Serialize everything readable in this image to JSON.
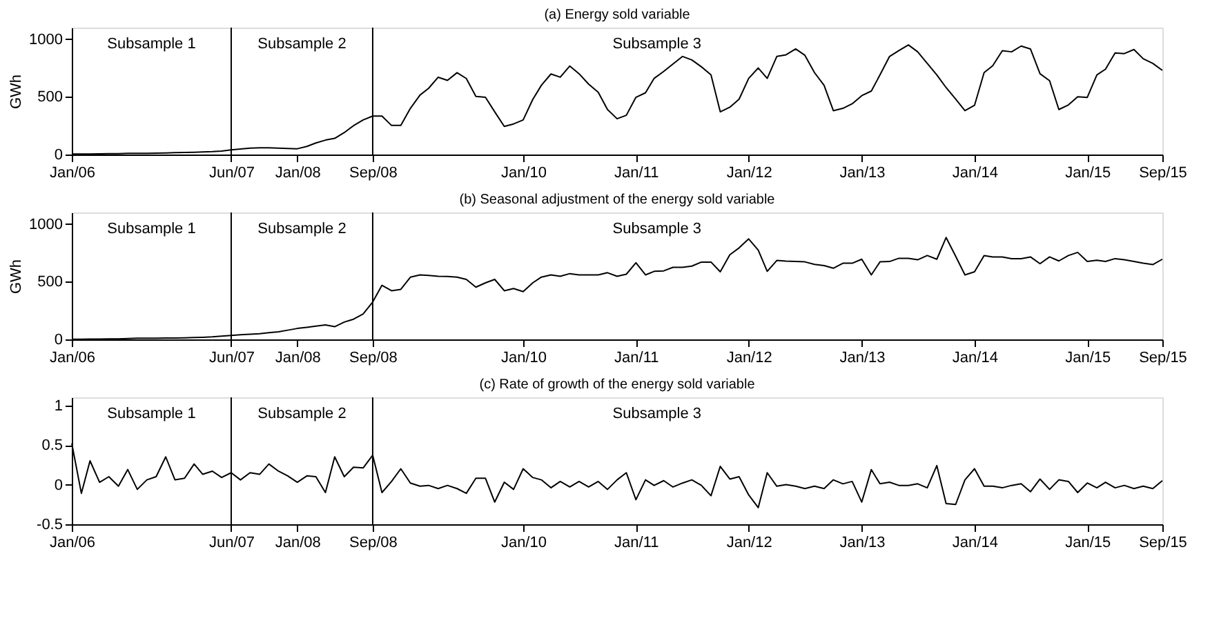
{
  "chart_data": [
    {
      "type": "line",
      "title": "(a) Energy sold variable",
      "ylabel": "GWh",
      "x": [
        "2006-01",
        "2006-02",
        "2006-03",
        "2006-04",
        "2006-05",
        "2006-06",
        "2006-07",
        "2006-08",
        "2006-09",
        "2006-10",
        "2006-11",
        "2006-12",
        "2007-01",
        "2007-02",
        "2007-03",
        "2007-04",
        "2007-05",
        "2007-06",
        "2007-07",
        "2007-08",
        "2007-09",
        "2007-10",
        "2007-11",
        "2007-12",
        "2008-01",
        "2008-02",
        "2008-03",
        "2008-04",
        "2008-05",
        "2008-06",
        "2008-07",
        "2008-08",
        "2008-09",
        "2008-10",
        "2008-11",
        "2008-12",
        "2009-01",
        "2009-02",
        "2009-03",
        "2009-04",
        "2009-05",
        "2009-06",
        "2009-07",
        "2009-08",
        "2009-09",
        "2009-10",
        "2009-11",
        "2009-12",
        "2010-01",
        "2010-02",
        "2010-03",
        "2010-04",
        "2010-05",
        "2010-06",
        "2010-07",
        "2010-08",
        "2010-09",
        "2010-10",
        "2010-11",
        "2010-12",
        "2011-01",
        "2011-02",
        "2011-03",
        "2011-04",
        "2011-05",
        "2011-06",
        "2011-07",
        "2011-08",
        "2011-09",
        "2011-10",
        "2011-11",
        "2011-12",
        "2012-01",
        "2012-02",
        "2012-03",
        "2012-04",
        "2012-05",
        "2012-06",
        "2012-07",
        "2012-08",
        "2012-09",
        "2012-10",
        "2012-11",
        "2012-12",
        "2013-01",
        "2013-02",
        "2013-03",
        "2013-04",
        "2013-05",
        "2013-06",
        "2013-07",
        "2013-08",
        "2013-09",
        "2013-10",
        "2013-11",
        "2013-12",
        "2014-01",
        "2014-02",
        "2014-03",
        "2014-04",
        "2014-05",
        "2014-06",
        "2014-07",
        "2014-08",
        "2014-09",
        "2014-10",
        "2014-11",
        "2014-12",
        "2015-01",
        "2015-02",
        "2015-03",
        "2015-04",
        "2015-05",
        "2015-06",
        "2015-07",
        "2015-08",
        "2015-09"
      ],
      "series": [
        {
          "color": "#000000",
          "values": [
            5,
            5,
            5,
            6,
            8,
            8,
            10,
            10,
            10,
            12,
            14,
            16,
            18,
            20,
            22,
            25,
            30,
            40,
            48,
            55,
            58,
            58,
            55,
            52,
            50,
            70,
            100,
            125,
            140,
            190,
            250,
            300,
            333,
            333,
            252,
            252,
            400,
            515,
            574,
            670,
            643,
            709,
            659,
            504,
            496,
            370,
            244,
            265,
            300,
            477,
            600,
            698,
            670,
            767,
            700,
            610,
            540,
            390,
            310,
            340,
            496,
            535,
            660,
            720,
            785,
            850,
            820,
            760,
            690,
            370,
            410,
            480,
            660,
            750,
            660,
            850,
            864,
            915,
            860,
            710,
            600,
            380,
            400,
            440,
            510,
            550,
            690,
            850,
            900,
            950,
            890,
            790,
            690,
            580,
            480,
            380,
            426,
            710,
            770,
            900,
            890,
            940,
            915,
            700,
            640,
            390,
            430,
            500,
            495,
            690,
            740,
            880,
            875,
            910,
            830,
            790,
            729
          ]
        }
      ],
      "xlim": [
        "2006-01",
        "2015-09"
      ],
      "xticks": [
        {
          "value": "2006-01",
          "label": "Jan/06"
        },
        {
          "value": "2007-06",
          "label": "Jun/07"
        },
        {
          "value": "2008-01",
          "label": "Jan/08"
        },
        {
          "value": "2008-09",
          "label": "Sep/08"
        },
        {
          "value": "2010-01",
          "label": "Jan/10"
        },
        {
          "value": "2011-01",
          "label": "Jan/11"
        },
        {
          "value": "2012-01",
          "label": "Jan/12"
        },
        {
          "value": "2013-01",
          "label": "Jan/13"
        },
        {
          "value": "2014-01",
          "label": "Jan/14"
        },
        {
          "value": "2015-01",
          "label": "Jan/15"
        },
        {
          "value": "2015-09",
          "label": "Sep/15"
        }
      ],
      "ylim": [
        0,
        1100
      ],
      "yticks": [
        0,
        500,
        1000
      ],
      "ref_lines": [
        {
          "axis": "x",
          "value": "2007-06",
          "color": "#000000"
        },
        {
          "axis": "x",
          "value": "2008-09",
          "color": "#000000"
        }
      ],
      "annotations": [
        "Subsample 1",
        "Subsample 2",
        "Subsample 3"
      ]
    },
    {
      "type": "line",
      "title": "(b) Seasonal adjustment of the energy sold variable",
      "ylabel": "GWh",
      "x": [
        "2006-01",
        "2006-02",
        "2006-03",
        "2006-04",
        "2006-05",
        "2006-06",
        "2006-07",
        "2006-08",
        "2006-09",
        "2006-10",
        "2006-11",
        "2006-12",
        "2007-01",
        "2007-02",
        "2007-03",
        "2007-04",
        "2007-05",
        "2007-06",
        "2007-07",
        "2007-08",
        "2007-09",
        "2007-10",
        "2007-11",
        "2007-12",
        "2008-01",
        "2008-02",
        "2008-03",
        "2008-04",
        "2008-05",
        "2008-06",
        "2008-07",
        "2008-08",
        "2008-09",
        "2008-10",
        "2008-11",
        "2008-12",
        "2009-01",
        "2009-02",
        "2009-03",
        "2009-04",
        "2009-05",
        "2009-06",
        "2009-07",
        "2009-08",
        "2009-09",
        "2009-10",
        "2009-11",
        "2009-12",
        "2010-01",
        "2010-02",
        "2010-03",
        "2010-04",
        "2010-05",
        "2010-06",
        "2010-07",
        "2010-08",
        "2010-09",
        "2010-10",
        "2010-11",
        "2010-12",
        "2011-01",
        "2011-02",
        "2011-03",
        "2011-04",
        "2011-05",
        "2011-06",
        "2011-07",
        "2011-08",
        "2011-09",
        "2011-10",
        "2011-11",
        "2011-12",
        "2012-01",
        "2012-02",
        "2012-03",
        "2012-04",
        "2012-05",
        "2012-06",
        "2012-07",
        "2012-08",
        "2012-09",
        "2012-10",
        "2012-11",
        "2012-12",
        "2013-01",
        "2013-02",
        "2013-03",
        "2013-04",
        "2013-05",
        "2013-06",
        "2013-07",
        "2013-08",
        "2013-09",
        "2013-10",
        "2013-11",
        "2013-12",
        "2014-01",
        "2014-02",
        "2014-03",
        "2014-04",
        "2014-05",
        "2014-06",
        "2014-07",
        "2014-08",
        "2014-09",
        "2014-10",
        "2014-11",
        "2014-12",
        "2015-01",
        "2015-02",
        "2015-03",
        "2015-04",
        "2015-05",
        "2015-06",
        "2015-07",
        "2015-08",
        "2015-09"
      ],
      "series": [
        {
          "color": "#000000",
          "values": [
            2,
            2,
            3,
            3,
            5,
            5,
            8,
            10,
            10,
            10,
            12,
            12,
            14,
            16,
            18,
            22,
            28,
            35,
            40,
            45,
            50,
            58,
            66,
            80,
            95,
            105,
            115,
            125,
            110,
            150,
            175,
            220,
            324,
            469,
            422,
            434,
            539,
            559,
            555,
            547,
            545,
            540,
            520,
            453,
            490,
            520,
            422,
            441,
            414,
            490,
            540,
            559,
            547,
            570,
            559,
            559,
            559,
            578,
            547,
            565,
            664,
            559,
            590,
            594,
            625,
            625,
            635,
            670,
            670,
            586,
            734,
            793,
            871,
            773,
            590,
            684,
            678,
            675,
            672,
            650,
            640,
            617,
            660,
            660,
            695,
            559,
            672,
            675,
            703,
            703,
            690,
            727,
            695,
            883,
            720,
            559,
            586,
            727,
            715,
            715,
            700,
            700,
            715,
            656,
            715,
            680,
            727,
            754,
            676,
            686,
            676,
            700,
            690,
            676,
            660,
            648,
            695
          ]
        }
      ],
      "xlim": [
        "2006-01",
        "2015-09"
      ],
      "xticks": [
        {
          "value": "2006-01",
          "label": "Jan/06"
        },
        {
          "value": "2007-06",
          "label": "Jun/07"
        },
        {
          "value": "2008-01",
          "label": "Jan/08"
        },
        {
          "value": "2008-09",
          "label": "Sep/08"
        },
        {
          "value": "2010-01",
          "label": "Jan/10"
        },
        {
          "value": "2011-01",
          "label": "Jan/11"
        },
        {
          "value": "2012-01",
          "label": "Jan/12"
        },
        {
          "value": "2013-01",
          "label": "Jan/13"
        },
        {
          "value": "2014-01",
          "label": "Jan/14"
        },
        {
          "value": "2015-01",
          "label": "Jan/15"
        },
        {
          "value": "2015-09",
          "label": "Sep/15"
        }
      ],
      "ylim": [
        0,
        1100
      ],
      "yticks": [
        0,
        500,
        1000
      ],
      "ref_lines": [
        {
          "axis": "x",
          "value": "2007-06",
          "color": "#000000"
        },
        {
          "axis": "x",
          "value": "2008-09",
          "color": "#000000"
        }
      ],
      "annotations": [
        "Subsample 1",
        "Subsample 2",
        "Subsample 3"
      ]
    },
    {
      "type": "line",
      "title": "(c) Rate of growth of the energy sold variable",
      "x": [
        "2006-01",
        "2006-02",
        "2006-03",
        "2006-04",
        "2006-05",
        "2006-06",
        "2006-07",
        "2006-08",
        "2006-09",
        "2006-10",
        "2006-11",
        "2006-12",
        "2007-01",
        "2007-02",
        "2007-03",
        "2007-04",
        "2007-05",
        "2007-06",
        "2007-07",
        "2007-08",
        "2007-09",
        "2007-10",
        "2007-11",
        "2007-12",
        "2008-01",
        "2008-02",
        "2008-03",
        "2008-04",
        "2008-05",
        "2008-06",
        "2008-07",
        "2008-08",
        "2008-09",
        "2008-10",
        "2008-11",
        "2008-12",
        "2009-01",
        "2009-02",
        "2009-03",
        "2009-04",
        "2009-05",
        "2009-06",
        "2009-07",
        "2009-08",
        "2009-09",
        "2009-10",
        "2009-11",
        "2009-12",
        "2010-01",
        "2010-02",
        "2010-03",
        "2010-04",
        "2010-05",
        "2010-06",
        "2010-07",
        "2010-08",
        "2010-09",
        "2010-10",
        "2010-11",
        "2010-12",
        "2011-01",
        "2011-02",
        "2011-03",
        "2011-04",
        "2011-05",
        "2011-06",
        "2011-07",
        "2011-08",
        "2011-09",
        "2011-10",
        "2011-11",
        "2011-12",
        "2012-01",
        "2012-02",
        "2012-03",
        "2012-04",
        "2012-05",
        "2012-06",
        "2012-07",
        "2012-08",
        "2012-09",
        "2012-10",
        "2012-11",
        "2012-12",
        "2013-01",
        "2013-02",
        "2013-03",
        "2013-04",
        "2013-05",
        "2013-06",
        "2013-07",
        "2013-08",
        "2013-09",
        "2013-10",
        "2013-11",
        "2013-12",
        "2014-01",
        "2014-02",
        "2014-03",
        "2014-04",
        "2014-05",
        "2014-06",
        "2014-07",
        "2014-08",
        "2014-09",
        "2014-10",
        "2014-11",
        "2014-12",
        "2015-01",
        "2015-02",
        "2015-03",
        "2015-04",
        "2015-05",
        "2015-06",
        "2015-07",
        "2015-08",
        "2015-09"
      ],
      "series": [
        {
          "color": "#000000",
          "values": [
            0.52,
            -0.11,
            0.3,
            0.03,
            0.1,
            -0.02,
            0.19,
            -0.06,
            0.06,
            0.1,
            0.35,
            0.06,
            0.08,
            0.26,
            0.13,
            0.17,
            0.09,
            0.15,
            0.06,
            0.15,
            0.13,
            0.26,
            0.17,
            0.11,
            0.03,
            0.11,
            0.1,
            -0.1,
            0.35,
            0.1,
            0.22,
            0.21,
            0.37,
            -0.1,
            0.04,
            0.2,
            0.02,
            -0.02,
            -0.01,
            -0.05,
            -0.01,
            -0.05,
            -0.11,
            0.08,
            0.08,
            -0.22,
            0.03,
            -0.06,
            0.2,
            0.09,
            0.06,
            -0.04,
            0.04,
            -0.03,
            0.04,
            -0.03,
            0.04,
            -0.06,
            0.06,
            0.15,
            -0.19,
            0.06,
            -0.01,
            0.05,
            -0.03,
            0.02,
            0.06,
            -0.01,
            -0.14,
            0.23,
            0.07,
            0.1,
            -0.13,
            -0.29,
            0.15,
            -0.02,
            0.0,
            -0.02,
            -0.05,
            -0.02,
            -0.05,
            0.06,
            0.01,
            0.04,
            -0.22,
            0.19,
            0.01,
            0.03,
            -0.01,
            -0.01,
            0.01,
            -0.04,
            0.24,
            -0.24,
            -0.25,
            0.06,
            0.2,
            -0.02,
            -0.02,
            -0.04,
            -0.01,
            0.01,
            -0.09,
            0.07,
            -0.06,
            0.06,
            0.04,
            -0.1,
            0.02,
            -0.04,
            0.03,
            -0.04,
            -0.01,
            -0.05,
            -0.02,
            -0.05,
            0.05
          ]
        }
      ],
      "xlim": [
        "2006-01",
        "2015-09"
      ],
      "xticks": [
        {
          "value": "2006-01",
          "label": "Jan/06"
        },
        {
          "value": "2007-06",
          "label": "Jun/07"
        },
        {
          "value": "2008-01",
          "label": "Jan/08"
        },
        {
          "value": "2008-09",
          "label": "Sep/08"
        },
        {
          "value": "2010-01",
          "label": "Jan/10"
        },
        {
          "value": "2011-01",
          "label": "Jan/11"
        },
        {
          "value": "2012-01",
          "label": "Jan/12"
        },
        {
          "value": "2013-01",
          "label": "Jan/13"
        },
        {
          "value": "2014-01",
          "label": "Jan/14"
        },
        {
          "value": "2015-01",
          "label": "Jan/15"
        },
        {
          "value": "2015-09",
          "label": "Sep/15"
        }
      ],
      "ylim": [
        -0.5,
        1.1
      ],
      "yticks": [
        -0.5,
        0,
        0.5,
        1
      ],
      "ref_lines": [
        {
          "axis": "x",
          "value": "2007-06",
          "color": "#000000"
        },
        {
          "axis": "x",
          "value": "2008-09",
          "color": "#000000"
        }
      ],
      "annotations": [
        "Subsample 1",
        "Subsample 2",
        "Subsample 3"
      ]
    }
  ]
}
